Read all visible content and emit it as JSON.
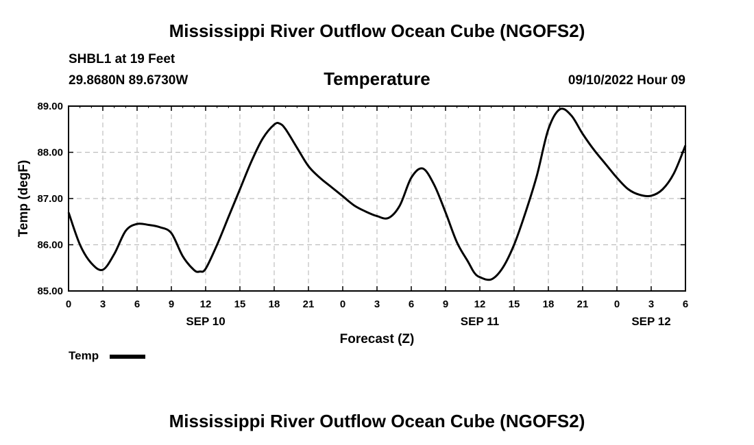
{
  "page": {
    "title": "Mississippi River Outflow Ocean Cube (NGOFS2)",
    "footer_title": "Mississippi River Outflow Ocean Cube (NGOFS2)"
  },
  "header": {
    "station": "SHBL1 at 19 Feet",
    "coords": "29.8680N  89.6730W",
    "variable": "Temperature",
    "datetime": "09/10/2022 Hour 09"
  },
  "legend": {
    "label": "Temp",
    "color": "#000000"
  },
  "chart_data": {
    "type": "line",
    "title": "Temperature",
    "xlabel": "Forecast (Z)",
    "ylabel": "Temp (degF)",
    "xlim": [
      0,
      54
    ],
    "ylim": [
      85.0,
      89.0
    ],
    "yticks": [
      85.0,
      86.0,
      87.0,
      88.0,
      89.0
    ],
    "ytick_labels": [
      "85.00",
      "86.00",
      "87.00",
      "88.00",
      "89.00"
    ],
    "xticks": [
      0,
      3,
      6,
      9,
      12,
      15,
      18,
      21,
      24,
      27,
      30,
      33,
      36,
      39,
      42,
      45,
      48,
      51,
      54
    ],
    "xtick_labels": [
      "0",
      "3",
      "6",
      "9",
      "12",
      "15",
      "18",
      "21",
      "0",
      "3",
      "6",
      "9",
      "12",
      "15",
      "18",
      "21",
      "0",
      "3",
      "6"
    ],
    "day_labels": [
      {
        "label": "SEP 10",
        "hour": 12
      },
      {
        "label": "SEP 11",
        "hour": 36
      },
      {
        "label": "SEP 12",
        "hour": 51
      }
    ],
    "grid": true,
    "series": [
      {
        "name": "Temp",
        "x": [
          0,
          1,
          2,
          3,
          4,
          5,
          6,
          7,
          8,
          9,
          10,
          11,
          11.5,
          12,
          13,
          14,
          15,
          16,
          17,
          18,
          18.5,
          19,
          20,
          21,
          22,
          23,
          24,
          25,
          26,
          27,
          28,
          29,
          30,
          31,
          32,
          33,
          34,
          35,
          35.5,
          36,
          37,
          38,
          39,
          40,
          41,
          42,
          43,
          44,
          45,
          46,
          47,
          48,
          49,
          50,
          51,
          52,
          53,
          54
        ],
        "y": [
          86.7,
          86.0,
          85.6,
          85.46,
          85.8,
          86.3,
          86.45,
          86.43,
          86.38,
          86.25,
          85.75,
          85.45,
          85.42,
          85.48,
          86.0,
          86.6,
          87.2,
          87.8,
          88.3,
          88.6,
          88.62,
          88.5,
          88.1,
          87.7,
          87.45,
          87.25,
          87.05,
          86.85,
          86.72,
          86.62,
          86.58,
          86.85,
          87.45,
          87.65,
          87.3,
          86.7,
          86.05,
          85.62,
          85.4,
          85.3,
          85.25,
          85.5,
          86.0,
          86.7,
          87.5,
          88.5,
          88.93,
          88.8,
          88.4,
          88.05,
          87.75,
          87.45,
          87.2,
          87.08,
          87.06,
          87.2,
          87.55,
          88.15
        ]
      }
    ]
  }
}
